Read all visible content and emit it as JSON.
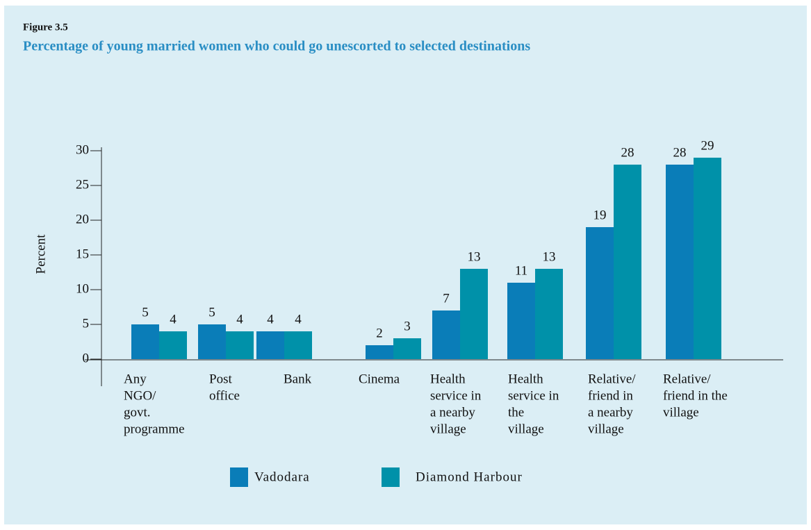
{
  "chart_data": {
    "type": "bar",
    "figure_label": "Figure 3.5",
    "title": "Percentage of young married women who could go unescorted to selected destinations",
    "ylabel": "Percent",
    "categories": [
      [
        "Any",
        "NGO/",
        "govt.",
        "programme"
      ],
      [
        "Post",
        "office"
      ],
      [
        "Bank"
      ],
      [
        "Cinema"
      ],
      [
        "Health",
        "service in",
        "a nearby",
        "village"
      ],
      [
        "Health",
        "service in",
        "the",
        "village"
      ],
      [
        "Relative/",
        "friend in",
        "a nearby",
        "village"
      ],
      [
        "Relative/",
        "friend in the",
        "village"
      ]
    ],
    "series": [
      {
        "name": "Vadodara",
        "color": "#0a7db8",
        "values": [
          5,
          5,
          4,
          2,
          7,
          11,
          19,
          28
        ]
      },
      {
        "name": "Diamond Harbour",
        "color": "#0091a9",
        "values": [
          4,
          4,
          4,
          3,
          13,
          13,
          28,
          29
        ]
      }
    ],
    "ylim": [
      0,
      30
    ],
    "yticks": [
      0,
      5,
      10,
      15,
      20,
      25,
      30
    ],
    "grid": false,
    "legend": "bottom"
  }
}
